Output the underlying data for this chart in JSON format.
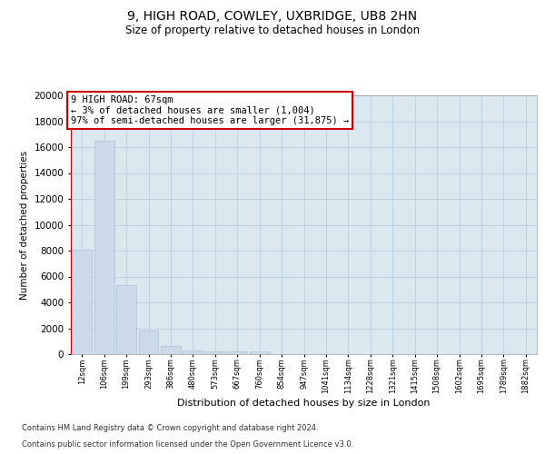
{
  "title1": "9, HIGH ROAD, COWLEY, UXBRIDGE, UB8 2HN",
  "title2": "Size of property relative to detached houses in London",
  "xlabel": "Distribution of detached houses by size in London",
  "ylabel": "Number of detached properties",
  "categories": [
    "12sqm",
    "106sqm",
    "199sqm",
    "293sqm",
    "386sqm",
    "480sqm",
    "573sqm",
    "667sqm",
    "760sqm",
    "854sqm",
    "947sqm",
    "1041sqm",
    "1134sqm",
    "1228sqm",
    "1321sqm",
    "1415sqm",
    "1508sqm",
    "1602sqm",
    "1695sqm",
    "1789sqm",
    "1882sqm"
  ],
  "values": [
    8100,
    16500,
    5300,
    1800,
    650,
    300,
    200,
    200,
    200,
    0,
    0,
    0,
    0,
    0,
    0,
    0,
    0,
    0,
    0,
    0,
    0
  ],
  "bar_color": "#ccd9e8",
  "bar_edge_color": "#a8bfd0",
  "vline_color": "#cc0000",
  "vline_x": -0.5,
  "annotation_line1": "9 HIGH ROAD: 67sqm",
  "annotation_line2": "← 3% of detached houses are smaller (1,004)",
  "annotation_line3": "97% of semi-detached houses are larger (31,875) →",
  "annotation_box_facecolor": "#ffffff",
  "annotation_box_edge": "#cc0000",
  "footer1": "Contains HM Land Registry data © Crown copyright and database right 2024.",
  "footer2": "Contains public sector information licensed under the Open Government Licence v3.0.",
  "background_color": "#ffffff",
  "plot_bg_color": "#dce8f0",
  "grid_color": "#b8cedd",
  "ylim": [
    0,
    20000
  ],
  "yticks": [
    0,
    2000,
    4000,
    6000,
    8000,
    10000,
    12000,
    14000,
    16000,
    18000,
    20000
  ],
  "title1_fontsize": 10,
  "title2_fontsize": 8.5
}
